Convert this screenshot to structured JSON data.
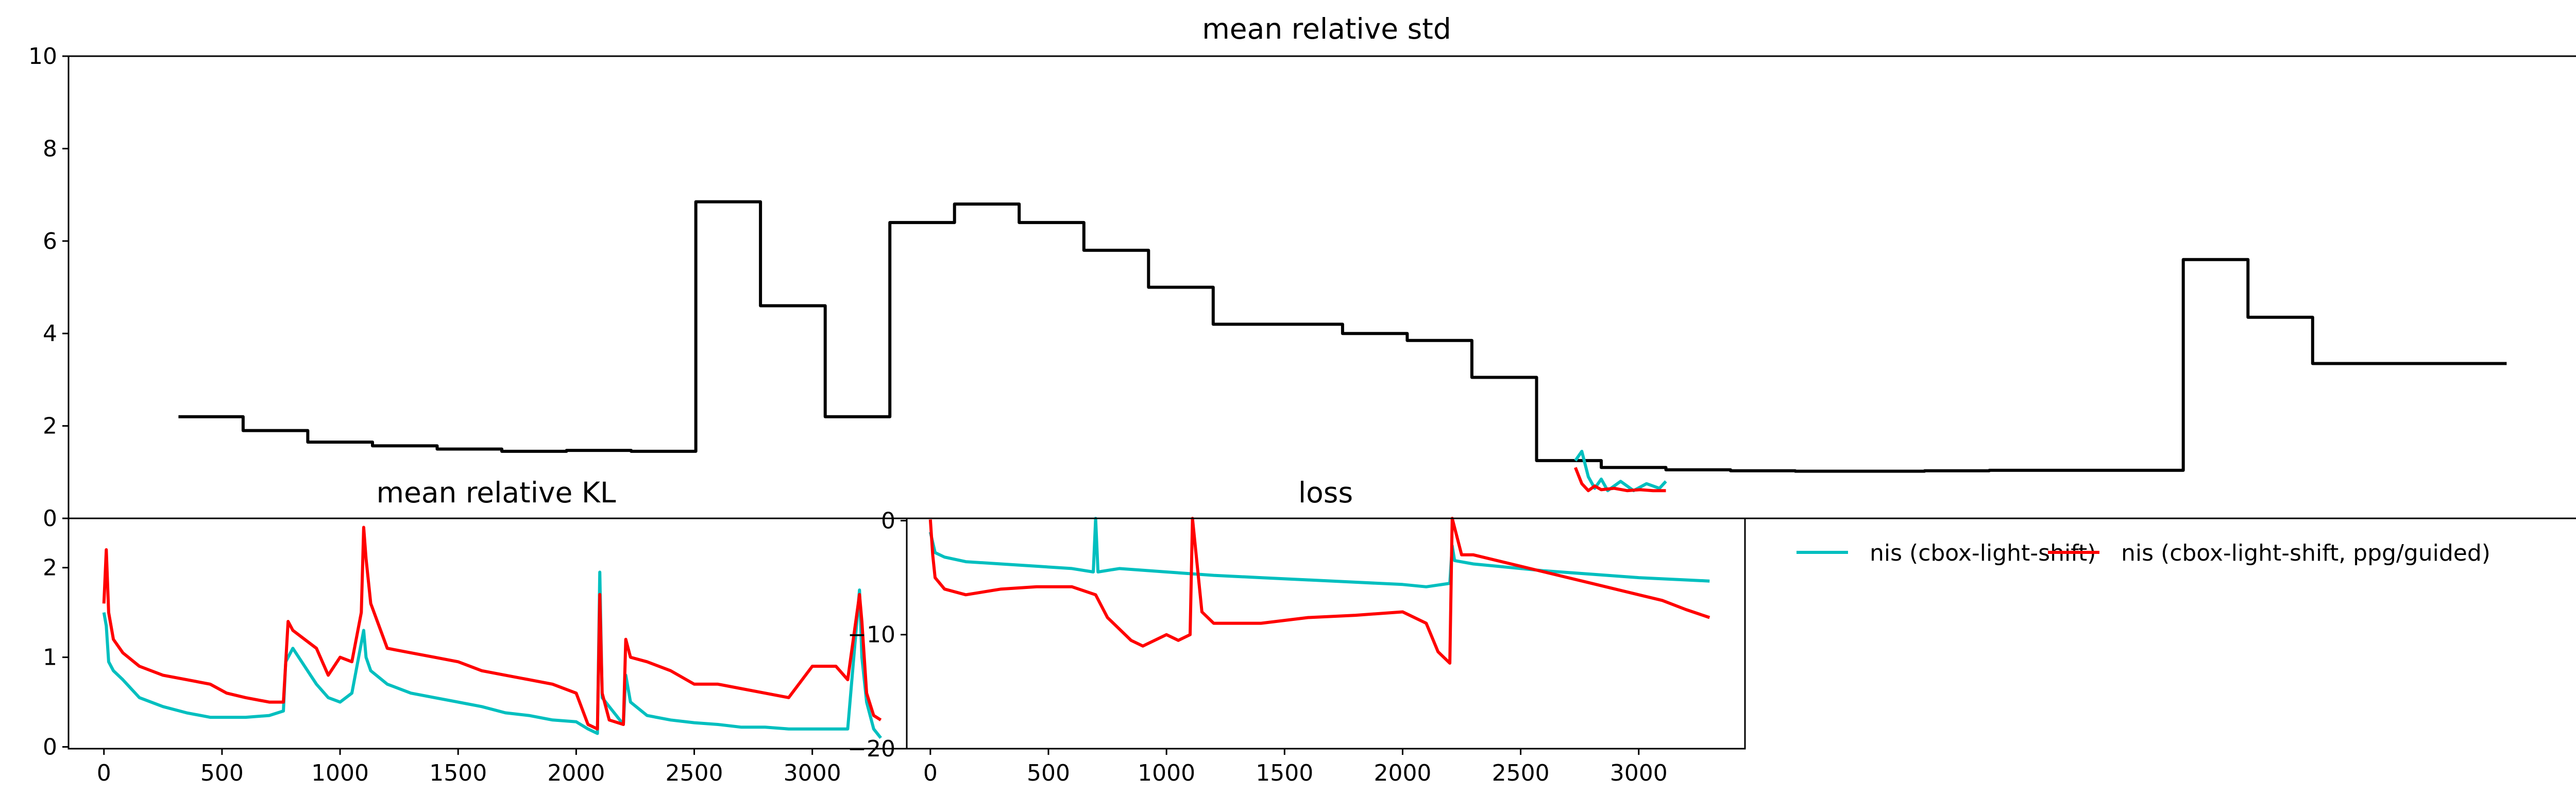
{
  "colors": {
    "cyan": "#00bfbf",
    "red": "#ff0000",
    "black": "#000000"
  },
  "chart_data": [
    {
      "type": "line",
      "title": "mean relative std",
      "xlabel": "",
      "ylabel": "",
      "ylim": [
        0,
        10
      ],
      "y_ticks": [
        0,
        2,
        4,
        6,
        8,
        10
      ],
      "grid": false,
      "series": [
        {
          "color": "#000000",
          "drawstyle": "steps",
          "x": [
            0,
            1,
            2,
            3,
            4,
            5,
            6,
            7,
            8,
            9,
            10,
            11,
            12,
            13,
            14,
            15,
            16,
            17,
            18,
            19,
            20,
            21,
            22,
            23,
            24,
            25,
            26,
            27,
            28,
            29,
            30,
            31,
            32,
            33,
            34,
            35
          ],
          "values": [
            2.2,
            1.9,
            1.65,
            1.57,
            1.5,
            1.45,
            1.47,
            1.45,
            6.85,
            4.6,
            2.2,
            6.4,
            6.8,
            6.4,
            5.8,
            5.0,
            4.2,
            4.2,
            4.0,
            3.85,
            3.05,
            1.25,
            1.1,
            1.05,
            1.03,
            1.02,
            1.02,
            1.03,
            1.04,
            1.04,
            1.04,
            5.6,
            4.35,
            3.35,
            3.35,
            3.35
          ]
        },
        {
          "color": "#00bfbf",
          "x": [
            21.6,
            21.7,
            21.8,
            21.9,
            22.0,
            22.1,
            22.3,
            22.5,
            22.7,
            22.9,
            23.0
          ],
          "values": [
            1.25,
            1.45,
            0.9,
            0.65,
            0.85,
            0.6,
            0.8,
            0.6,
            0.75,
            0.65,
            0.8
          ]
        },
        {
          "color": "#ff0000",
          "x": [
            21.6,
            21.7,
            21.8,
            21.9,
            22.0,
            22.2,
            22.4,
            22.6,
            22.8,
            23.0
          ],
          "values": [
            1.1,
            0.75,
            0.6,
            0.7,
            0.62,
            0.65,
            0.6,
            0.62,
            0.6,
            0.6
          ]
        }
      ]
    },
    {
      "type": "line",
      "title": "mean relative KL",
      "xlabel": "",
      "ylabel": "",
      "xlim": [
        -150,
        3400
      ],
      "ylim": [
        -0.02,
        2.55
      ],
      "x_ticks": [
        0,
        500,
        1000,
        1500,
        2000,
        2500,
        3000
      ],
      "y_ticks": [
        0,
        1,
        2
      ],
      "grid": false,
      "series": [
        {
          "name": "nis (cbox-light-shift)",
          "color": "#00bfbf",
          "x": [
            0,
            10,
            20,
            40,
            80,
            150,
            250,
            350,
            450,
            520,
            600,
            700,
            760,
            770,
            800,
            850,
            900,
            950,
            1000,
            1050,
            1100,
            1110,
            1130,
            1200,
            1300,
            1400,
            1500,
            1600,
            1700,
            1800,
            1900,
            2000,
            2050,
            2090,
            2100,
            2110,
            2140,
            2200,
            2210,
            2230,
            2300,
            2400,
            2500,
            2600,
            2700,
            2800,
            2900,
            3000,
            3100,
            3150,
            3200,
            3210,
            3230,
            3260,
            3290
          ],
          "values": [
            1.5,
            1.35,
            0.95,
            0.85,
            0.75,
            0.55,
            0.45,
            0.38,
            0.33,
            0.33,
            0.33,
            0.35,
            0.4,
            0.95,
            1.1,
            0.9,
            0.7,
            0.55,
            0.5,
            0.6,
            1.3,
            1.0,
            0.85,
            0.7,
            0.6,
            0.55,
            0.5,
            0.45,
            0.38,
            0.35,
            0.3,
            0.28,
            0.2,
            0.15,
            1.95,
            0.55,
            0.45,
            0.25,
            0.8,
            0.5,
            0.35,
            0.3,
            0.27,
            0.25,
            0.22,
            0.22,
            0.2,
            0.2,
            0.2,
            0.2,
            1.75,
            1.0,
            0.5,
            0.2,
            0.1
          ]
        },
        {
          "name": "nis (cbox-light-shift, ppg/guided)",
          "color": "#ff0000",
          "x": [
            0,
            10,
            20,
            40,
            80,
            150,
            250,
            350,
            450,
            520,
            600,
            700,
            760,
            780,
            800,
            850,
            900,
            950,
            1000,
            1050,
            1090,
            1100,
            1110,
            1130,
            1200,
            1300,
            1400,
            1500,
            1600,
            1700,
            1800,
            1900,
            2000,
            2050,
            2090,
            2100,
            2110,
            2140,
            2200,
            2210,
            2230,
            2300,
            2400,
            2500,
            2600,
            2700,
            2800,
            2900,
            3000,
            3100,
            3150,
            3200,
            3210,
            3230,
            3260,
            3290
          ],
          "values": [
            1.6,
            2.2,
            1.5,
            1.2,
            1.05,
            0.9,
            0.8,
            0.75,
            0.7,
            0.6,
            0.55,
            0.5,
            0.5,
            1.4,
            1.3,
            1.2,
            1.1,
            0.8,
            1.0,
            0.95,
            1.5,
            2.45,
            2.1,
            1.6,
            1.1,
            1.05,
            1.0,
            0.95,
            0.85,
            0.8,
            0.75,
            0.7,
            0.6,
            0.25,
            0.2,
            1.7,
            0.6,
            0.3,
            0.25,
            1.2,
            1.0,
            0.95,
            0.85,
            0.7,
            0.7,
            0.65,
            0.6,
            0.55,
            0.9,
            0.9,
            0.75,
            1.7,
            1.4,
            0.6,
            0.35,
            0.3
          ]
        }
      ]
    },
    {
      "type": "line",
      "title": "loss",
      "xlabel": "",
      "ylabel": "",
      "xlim": [
        -100,
        3450
      ],
      "ylim": [
        -20,
        0.2
      ],
      "x_ticks": [
        0,
        500,
        1000,
        1500,
        2000,
        2500,
        3000
      ],
      "y_ticks": [
        0,
        -10,
        -20
      ],
      "y_tick_labels": [
        "0",
        "−10",
        "−20"
      ],
      "grid": false,
      "series": [
        {
          "name": "nis (cbox-light-shift)",
          "color": "#00bfbf",
          "x": [
            0,
            20,
            60,
            150,
            300,
            450,
            600,
            690,
            700,
            710,
            800,
            1000,
            1200,
            1400,
            1600,
            1800,
            2000,
            2100,
            2200,
            2210,
            2220,
            2300,
            2400,
            2600,
            2800,
            3000,
            3200,
            3300
          ],
          "values": [
            -1.0,
            -2.8,
            -3.2,
            -3.6,
            -3.8,
            -4.0,
            -4.2,
            -4.5,
            0.2,
            -4.5,
            -4.2,
            -4.5,
            -4.8,
            -5.0,
            -5.2,
            -5.4,
            -5.6,
            -5.8,
            -5.5,
            -2.2,
            -3.5,
            -3.8,
            -4.0,
            -4.4,
            -4.7,
            -5.0,
            -5.2,
            -5.3
          ]
        },
        {
          "name": "nis (cbox-light-shift, ppg/guided)",
          "color": "#ff0000",
          "x": [
            0,
            10,
            20,
            60,
            150,
            300,
            450,
            600,
            700,
            750,
            800,
            850,
            900,
            1000,
            1050,
            1100,
            1110,
            1150,
            1200,
            1400,
            1600,
            1800,
            2000,
            2100,
            2150,
            2200,
            2210,
            2250,
            2300,
            2400,
            2600,
            2800,
            3000,
            3100,
            3200,
            3300
          ],
          "values": [
            0.1,
            -3.0,
            -5.0,
            -6.0,
            -6.5,
            -6.0,
            -5.8,
            -5.8,
            -6.5,
            -8.5,
            -9.5,
            -10.5,
            -11.0,
            -10.0,
            -10.5,
            -10.0,
            0.2,
            -8.0,
            -9.0,
            -9.0,
            -8.5,
            -8.3,
            -8.0,
            -9.0,
            -11.5,
            -12.5,
            0.2,
            -3.0,
            -3.0,
            -3.5,
            -4.5,
            -5.5,
            -6.5,
            -7.0,
            -7.8,
            -8.5
          ]
        }
      ]
    }
  ],
  "legend": {
    "placement": "upper left",
    "entries": [
      {
        "label": "nis (cbox-light-shift)",
        "color": "#00bfbf"
      },
      {
        "label": "nis (cbox-light-shift, ppg/guided)",
        "color": "#ff0000"
      }
    ]
  }
}
